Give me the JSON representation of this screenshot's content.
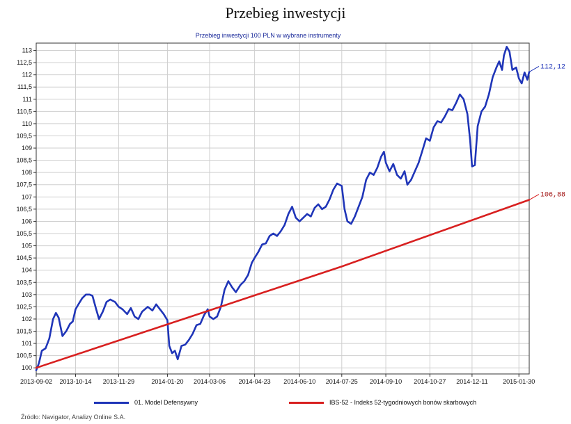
{
  "page": {
    "title": "Przebieg inwestycji",
    "source": "Źródło: Navigator, Analizy Online S.A."
  },
  "colors": {
    "series1": "#1f35b8",
    "series2": "#d82020",
    "grid": "#cfcfcf",
    "axis": "#333333",
    "label1": "#1f35b8",
    "label2": "#a01010"
  },
  "chart_data": {
    "type": "line",
    "title": "",
    "subtitle": "Przebieg inwestycji 100 PLN w wybrane instrumenty",
    "xlabel": "",
    "ylabel": "",
    "ylim": [
      99.75,
      113.3
    ],
    "xlim": [
      "2013-09-02",
      "2015-02-10"
    ],
    "grid": true,
    "legend_position": "bottom",
    "y_ticks": [
      "100",
      "100,5",
      "101",
      "101,5",
      "102",
      "102,5",
      "103",
      "103,5",
      "104",
      "104,5",
      "105",
      "105,5",
      "106",
      "106,5",
      "107",
      "107,5",
      "108",
      "108,5",
      "109",
      "109,5",
      "110",
      "110,5",
      "111",
      "111,5",
      "112",
      "112,5",
      "113"
    ],
    "x_ticks": [
      "2013-09-02",
      "2013-10-14",
      "2013-11-29",
      "2014-01-20",
      "2014-03-06",
      "2014-04-23",
      "2014-06-10",
      "2014-07-25",
      "2014-09-10",
      "2014-10-27",
      "2014-12-11",
      "2015-01-30"
    ],
    "series": [
      {
        "name": "01. Model Defensywny",
        "end_label": "112,12",
        "points": [
          [
            "2013-09-02",
            99.9
          ],
          [
            "2013-09-05",
            100.2
          ],
          [
            "2013-09-08",
            100.7
          ],
          [
            "2013-09-12",
            100.8
          ],
          [
            "2013-09-16",
            101.2
          ],
          [
            "2013-09-20",
            102.0
          ],
          [
            "2013-09-23",
            102.25
          ],
          [
            "2013-09-26",
            102.05
          ],
          [
            "2013-09-30",
            101.3
          ],
          [
            "2013-10-04",
            101.5
          ],
          [
            "2013-10-08",
            101.8
          ],
          [
            "2013-10-11",
            101.9
          ],
          [
            "2013-10-14",
            102.4
          ],
          [
            "2013-10-17",
            102.6
          ],
          [
            "2013-10-21",
            102.85
          ],
          [
            "2013-10-25",
            103.0
          ],
          [
            "2013-10-29",
            103.0
          ],
          [
            "2013-11-01",
            102.95
          ],
          [
            "2013-11-05",
            102.4
          ],
          [
            "2013-11-08",
            102.0
          ],
          [
            "2013-11-12",
            102.3
          ],
          [
            "2013-11-16",
            102.7
          ],
          [
            "2013-11-20",
            102.8
          ],
          [
            "2013-11-25",
            102.7
          ],
          [
            "2013-11-29",
            102.5
          ],
          [
            "2013-12-03",
            102.4
          ],
          [
            "2013-12-08",
            102.2
          ],
          [
            "2013-12-12",
            102.45
          ],
          [
            "2013-12-16",
            102.1
          ],
          [
            "2013-12-20",
            102.0
          ],
          [
            "2013-12-24",
            102.3
          ],
          [
            "2013-12-30",
            102.5
          ],
          [
            "2014-01-04",
            102.35
          ],
          [
            "2014-01-08",
            102.6
          ],
          [
            "2014-01-12",
            102.4
          ],
          [
            "2014-01-16",
            102.2
          ],
          [
            "2014-01-20",
            101.95
          ],
          [
            "2014-01-22",
            100.9
          ],
          [
            "2014-01-25",
            100.6
          ],
          [
            "2014-01-28",
            100.7
          ],
          [
            "2014-01-31",
            100.35
          ],
          [
            "2014-02-04",
            100.9
          ],
          [
            "2014-02-08",
            100.95
          ],
          [
            "2014-02-12",
            101.15
          ],
          [
            "2014-02-16",
            101.4
          ],
          [
            "2014-02-20",
            101.75
          ],
          [
            "2014-02-24",
            101.8
          ],
          [
            "2014-02-28",
            102.15
          ],
          [
            "2014-03-04",
            102.4
          ],
          [
            "2014-03-06",
            102.1
          ],
          [
            "2014-03-10",
            102.0
          ],
          [
            "2014-03-14",
            102.1
          ],
          [
            "2014-03-18",
            102.5
          ],
          [
            "2014-03-22",
            103.2
          ],
          [
            "2014-03-26",
            103.55
          ],
          [
            "2014-03-30",
            103.3
          ],
          [
            "2014-04-03",
            103.1
          ],
          [
            "2014-04-08",
            103.4
          ],
          [
            "2014-04-12",
            103.55
          ],
          [
            "2014-04-16",
            103.8
          ],
          [
            "2014-04-20",
            104.3
          ],
          [
            "2014-04-23",
            104.5
          ],
          [
            "2014-04-27",
            104.75
          ],
          [
            "2014-05-01",
            105.05
          ],
          [
            "2014-05-05",
            105.1
          ],
          [
            "2014-05-09",
            105.4
          ],
          [
            "2014-05-13",
            105.5
          ],
          [
            "2014-05-17",
            105.4
          ],
          [
            "2014-05-21",
            105.6
          ],
          [
            "2014-05-25",
            105.85
          ],
          [
            "2014-05-29",
            106.3
          ],
          [
            "2014-06-02",
            106.6
          ],
          [
            "2014-06-06",
            106.15
          ],
          [
            "2014-06-10",
            106.0
          ],
          [
            "2014-06-14",
            106.15
          ],
          [
            "2014-06-18",
            106.3
          ],
          [
            "2014-06-22",
            106.2
          ],
          [
            "2014-06-26",
            106.55
          ],
          [
            "2014-06-30",
            106.7
          ],
          [
            "2014-07-04",
            106.5
          ],
          [
            "2014-07-08",
            106.6
          ],
          [
            "2014-07-12",
            106.9
          ],
          [
            "2014-07-16",
            107.3
          ],
          [
            "2014-07-20",
            107.55
          ],
          [
            "2014-07-25",
            107.45
          ],
          [
            "2014-07-28",
            106.5
          ],
          [
            "2014-07-31",
            106.0
          ],
          [
            "2014-08-04",
            105.9
          ],
          [
            "2014-08-08",
            106.2
          ],
          [
            "2014-08-12",
            106.6
          ],
          [
            "2014-08-16",
            107.0
          ],
          [
            "2014-08-20",
            107.7
          ],
          [
            "2014-08-24",
            108.0
          ],
          [
            "2014-08-28",
            107.9
          ],
          [
            "2014-09-01",
            108.2
          ],
          [
            "2014-09-05",
            108.65
          ],
          [
            "2014-09-08",
            108.85
          ],
          [
            "2014-09-10",
            108.4
          ],
          [
            "2014-09-14",
            108.05
          ],
          [
            "2014-09-18",
            108.35
          ],
          [
            "2014-09-22",
            107.9
          ],
          [
            "2014-09-26",
            107.75
          ],
          [
            "2014-09-30",
            108.05
          ],
          [
            "2014-10-03",
            107.5
          ],
          [
            "2014-10-07",
            107.7
          ],
          [
            "2014-10-11",
            108.05
          ],
          [
            "2014-10-15",
            108.4
          ],
          [
            "2014-10-19",
            108.9
          ],
          [
            "2014-10-23",
            109.4
          ],
          [
            "2014-10-27",
            109.3
          ],
          [
            "2014-10-31",
            109.85
          ],
          [
            "2014-11-04",
            110.1
          ],
          [
            "2014-11-08",
            110.05
          ],
          [
            "2014-11-12",
            110.3
          ],
          [
            "2014-11-16",
            110.6
          ],
          [
            "2014-11-20",
            110.55
          ],
          [
            "2014-11-24",
            110.85
          ],
          [
            "2014-11-28",
            111.2
          ],
          [
            "2014-12-02",
            111.0
          ],
          [
            "2014-12-06",
            110.4
          ],
          [
            "2014-12-09",
            109.3
          ],
          [
            "2014-12-11",
            108.25
          ],
          [
            "2014-12-14",
            108.3
          ],
          [
            "2014-12-17",
            109.9
          ],
          [
            "2014-12-21",
            110.5
          ],
          [
            "2014-12-25",
            110.7
          ],
          [
            "2014-12-29",
            111.2
          ],
          [
            "2015-01-02",
            111.9
          ],
          [
            "2015-01-06",
            112.3
          ],
          [
            "2015-01-09",
            112.55
          ],
          [
            "2015-01-12",
            112.2
          ],
          [
            "2015-01-14",
            112.8
          ],
          [
            "2015-01-17",
            113.15
          ],
          [
            "2015-01-20",
            112.95
          ],
          [
            "2015-01-23",
            112.2
          ],
          [
            "2015-01-27",
            112.3
          ],
          [
            "2015-01-30",
            111.85
          ],
          [
            "2015-02-02",
            111.65
          ],
          [
            "2015-02-05",
            112.1
          ],
          [
            "2015-02-08",
            111.8
          ],
          [
            "2015-02-10",
            112.12
          ]
        ]
      },
      {
        "name": "IBS-52 - Indeks 52-tygodniowych bonów skarbowych",
        "end_label": "106,88",
        "points": [
          [
            "2013-09-02",
            100.0
          ],
          [
            "2014-07-25",
            104.15
          ],
          [
            "2015-02-10",
            106.88
          ]
        ]
      }
    ]
  }
}
